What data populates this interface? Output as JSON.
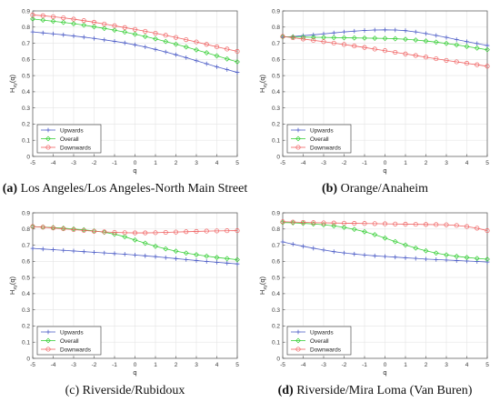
{
  "chart_data": [
    {
      "type": "line",
      "caption_letter": "(a)",
      "caption_text": "Los Angeles/Los Angeles-North Main Street",
      "caption_letter_bold": true,
      "xlabel": "q",
      "ylabel": "H",
      "ylabel_sub": "xy",
      "ylabel_suffix": "(q)",
      "xlim": [
        -5,
        5
      ],
      "ylim": [
        0,
        0.9
      ],
      "xticks": [
        "-5",
        "-4",
        "-3",
        "-2",
        "-1",
        "0",
        "1",
        "2",
        "3",
        "4",
        "5"
      ],
      "yticks": [
        "0",
        "0.1",
        "0.2",
        "0.3",
        "0.4",
        "0.5",
        "0.6",
        "0.7",
        "0.8",
        "0.9"
      ],
      "grid": true,
      "legend_position": "bottom-left",
      "x": [
        -5,
        -4.5,
        -4,
        -3.5,
        -3,
        -2.5,
        -2,
        -1.5,
        -1,
        -0.5,
        0,
        0.5,
        1,
        1.5,
        2,
        2.5,
        3,
        3.5,
        4,
        4.5,
        5
      ],
      "series": [
        {
          "name": "Upwards",
          "color": "#5060c8",
          "marker": "plus",
          "values": [
            0.77,
            0.764,
            0.758,
            0.752,
            0.745,
            0.738,
            0.73,
            0.721,
            0.712,
            0.702,
            0.69,
            0.677,
            0.662,
            0.646,
            0.629,
            0.611,
            0.592,
            0.573,
            0.554,
            0.537,
            0.52
          ]
        },
        {
          "name": "Overall",
          "color": "#3ad03a",
          "marker": "diamond",
          "values": [
            0.85,
            0.843,
            0.836,
            0.829,
            0.821,
            0.812,
            0.802,
            0.792,
            0.781,
            0.769,
            0.756,
            0.742,
            0.727,
            0.711,
            0.694,
            0.677,
            0.659,
            0.641,
            0.622,
            0.603,
            0.585
          ]
        },
        {
          "name": "Downwards",
          "color": "#f06060",
          "marker": "circle",
          "values": [
            0.875,
            0.87,
            0.864,
            0.857,
            0.849,
            0.84,
            0.83,
            0.819,
            0.808,
            0.797,
            0.786,
            0.774,
            0.762,
            0.749,
            0.736,
            0.722,
            0.708,
            0.693,
            0.678,
            0.664,
            0.65
          ]
        }
      ]
    },
    {
      "type": "line",
      "caption_letter": "(b)",
      "caption_text": "Orange/Anaheim",
      "caption_letter_bold": true,
      "xlabel": "q",
      "ylabel": "H",
      "ylabel_sub": "xy",
      "ylabel_suffix": "(q)",
      "xlim": [
        -5,
        5
      ],
      "ylim": [
        0,
        0.9
      ],
      "xticks": [
        "-5",
        "-4",
        "-3",
        "-2",
        "-1",
        "0",
        "1",
        "2",
        "3",
        "4",
        "5"
      ],
      "yticks": [
        "0",
        "0.1",
        "0.2",
        "0.3",
        "0.4",
        "0.5",
        "0.6",
        "0.7",
        "0.8",
        "0.9"
      ],
      "grid": true,
      "legend_position": "bottom-left",
      "x": [
        -5,
        -4.5,
        -4,
        -3.5,
        -3,
        -2.5,
        -2,
        -1.5,
        -1,
        -0.5,
        0,
        0.5,
        1,
        1.5,
        2,
        2.5,
        3,
        3.5,
        4,
        4.5,
        5
      ],
      "series": [
        {
          "name": "Upwards",
          "color": "#5060c8",
          "marker": "plus",
          "values": [
            0.738,
            0.742,
            0.747,
            0.752,
            0.758,
            0.764,
            0.77,
            0.775,
            0.779,
            0.782,
            0.783,
            0.782,
            0.778,
            0.77,
            0.76,
            0.748,
            0.736,
            0.723,
            0.71,
            0.698,
            0.686
          ]
        },
        {
          "name": "Overall",
          "color": "#3ad03a",
          "marker": "diamond",
          "values": [
            0.74,
            0.739,
            0.738,
            0.737,
            0.736,
            0.735,
            0.734,
            0.733,
            0.732,
            0.731,
            0.73,
            0.728,
            0.725,
            0.72,
            0.714,
            0.707,
            0.699,
            0.69,
            0.68,
            0.67,
            0.66
          ]
        },
        {
          "name": "Downwards",
          "color": "#f06060",
          "marker": "circle",
          "values": [
            0.742,
            0.734,
            0.726,
            0.718,
            0.71,
            0.701,
            0.692,
            0.683,
            0.674,
            0.664,
            0.654,
            0.644,
            0.634,
            0.624,
            0.614,
            0.604,
            0.594,
            0.585,
            0.576,
            0.567,
            0.558
          ]
        }
      ]
    },
    {
      "type": "line",
      "caption_letter": "(c)",
      "caption_text": "Riverside/Rubidoux",
      "caption_letter_bold": false,
      "xlabel": "q",
      "ylabel": "H",
      "ylabel_sub": "xy",
      "ylabel_suffix": "(q)",
      "xlim": [
        -5,
        5
      ],
      "ylim": [
        0,
        0.9
      ],
      "xticks": [
        "-5",
        "-4",
        "-3",
        "-2",
        "-1",
        "0",
        "1",
        "2",
        "3",
        "4",
        "5"
      ],
      "yticks": [
        "0",
        "0.1",
        "0.2",
        "0.3",
        "0.4",
        "0.5",
        "0.6",
        "0.7",
        "0.8",
        "0.9"
      ],
      "grid": true,
      "legend_position": "bottom-left",
      "x": [
        -5,
        -4.5,
        -4,
        -3.5,
        -3,
        -2.5,
        -2,
        -1.5,
        -1,
        -0.5,
        0,
        0.5,
        1,
        1.5,
        2,
        2.5,
        3,
        3.5,
        4,
        4.5,
        5
      ],
      "series": [
        {
          "name": "Upwards",
          "color": "#5060c8",
          "marker": "plus",
          "values": [
            0.68,
            0.676,
            0.672,
            0.668,
            0.664,
            0.66,
            0.656,
            0.652,
            0.648,
            0.644,
            0.639,
            0.634,
            0.629,
            0.623,
            0.617,
            0.611,
            0.605,
            0.599,
            0.594,
            0.589,
            0.584
          ]
        },
        {
          "name": "Overall",
          "color": "#3ad03a",
          "marker": "diamond",
          "values": [
            0.815,
            0.812,
            0.809,
            0.805,
            0.8,
            0.795,
            0.788,
            0.78,
            0.768,
            0.752,
            0.732,
            0.712,
            0.693,
            0.677,
            0.663,
            0.651,
            0.641,
            0.632,
            0.624,
            0.617,
            0.61
          ]
        },
        {
          "name": "Downwards",
          "color": "#f06060",
          "marker": "circle",
          "values": [
            0.815,
            0.811,
            0.806,
            0.801,
            0.796,
            0.791,
            0.786,
            0.782,
            0.779,
            0.777,
            0.776,
            0.776,
            0.777,
            0.779,
            0.781,
            0.783,
            0.785,
            0.787,
            0.788,
            0.789,
            0.79
          ]
        }
      ]
    },
    {
      "type": "line",
      "caption_letter": "(d)",
      "caption_text": "Riverside/Mira Loma (Van Buren)",
      "caption_letter_bold": true,
      "xlabel": "q",
      "ylabel": "H",
      "ylabel_sub": "xy",
      "ylabel_suffix": "(q)",
      "xlim": [
        -5,
        5
      ],
      "ylim": [
        0,
        0.9
      ],
      "xticks": [
        "-5",
        "-4",
        "-3",
        "-2",
        "-1",
        "0",
        "1",
        "2",
        "3",
        "4",
        "5"
      ],
      "yticks": [
        "0",
        "0.1",
        "0.2",
        "0.3",
        "0.4",
        "0.5",
        "0.6",
        "0.7",
        "0.8",
        "0.9"
      ],
      "grid": true,
      "legend_position": "bottom-left",
      "x": [
        -5,
        -4.5,
        -4,
        -3.5,
        -3,
        -2.5,
        -2,
        -1.5,
        -1,
        -0.5,
        0,
        0.5,
        1,
        1.5,
        2,
        2.5,
        3,
        3.5,
        4,
        4.5,
        5
      ],
      "series": [
        {
          "name": "Upwards",
          "color": "#5060c8",
          "marker": "plus",
          "values": [
            0.72,
            0.706,
            0.693,
            0.681,
            0.67,
            0.66,
            0.652,
            0.645,
            0.639,
            0.634,
            0.63,
            0.626,
            0.622,
            0.618,
            0.614,
            0.611,
            0.608,
            0.605,
            0.602,
            0.599,
            0.596
          ]
        },
        {
          "name": "Overall",
          "color": "#3ad03a",
          "marker": "diamond",
          "values": [
            0.84,
            0.838,
            0.835,
            0.831,
            0.826,
            0.819,
            0.81,
            0.798,
            0.783,
            0.765,
            0.744,
            0.722,
            0.701,
            0.682,
            0.665,
            0.651,
            0.64,
            0.631,
            0.624,
            0.618,
            0.613
          ]
        },
        {
          "name": "Downwards",
          "color": "#f06060",
          "marker": "circle",
          "values": [
            0.845,
            0.843,
            0.841,
            0.839,
            0.838,
            0.837,
            0.836,
            0.835,
            0.834,
            0.833,
            0.832,
            0.831,
            0.83,
            0.829,
            0.828,
            0.827,
            0.826,
            0.822,
            0.815,
            0.805,
            0.79
          ]
        }
      ]
    }
  ]
}
